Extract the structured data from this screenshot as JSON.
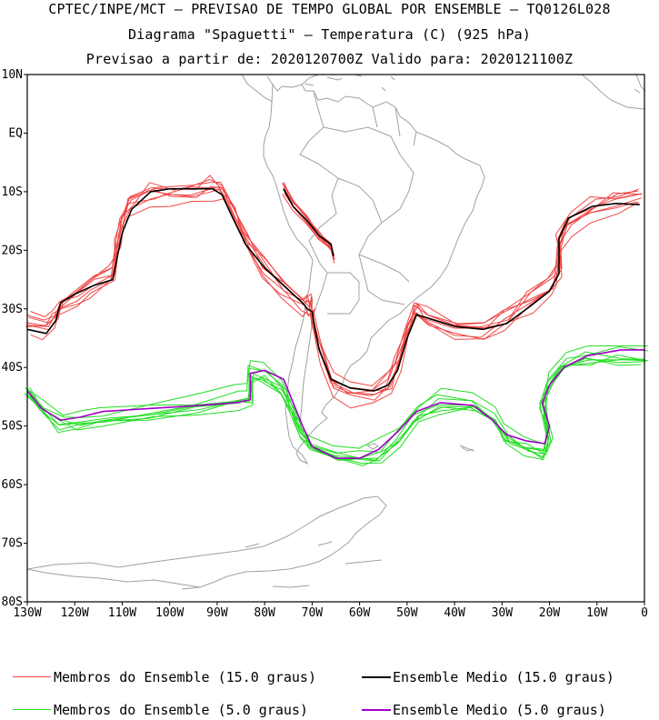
{
  "titles": {
    "line1": "CPTEC/INPE/MCT – PREVISAO DE TEMPO GLOBAL POR ENSEMBLE – TQ0126L028",
    "line2": "Diagrama \"Spaguetti\" – Temperatura (C) (925 hPa)",
    "line3": "Previsao a partir de: 2020120700Z  Valido para: 2020121100Z"
  },
  "legend": {
    "items": [
      {
        "label": "Membros do Ensemble (15.0 graus)",
        "color": "#f04646"
      },
      {
        "label": "Ensemble Medio (15.0 graus)",
        "color": "#000000"
      },
      {
        "label": "Membros do Ensemble (5.0 graus)",
        "color": "#22dd22"
      },
      {
        "label": "Ensemble Medio (5.0 graus)",
        "color": "#a000c8"
      }
    ]
  },
  "chart_data": {
    "type": "line",
    "title": "Diagrama \"Spaguetti\" – Temperatura (C) (925 hPa)",
    "xlabel": "",
    "ylabel": "",
    "xlim": [
      -130,
      0
    ],
    "ylim": [
      -80,
      10
    ],
    "x_ticks": [
      -130,
      -120,
      -110,
      -100,
      -90,
      -80,
      -70,
      -60,
      -50,
      -40,
      -30,
      -20,
      -10,
      0
    ],
    "x_tick_labels": [
      "130W",
      "120W",
      "110W",
      "100W",
      "90W",
      "80W",
      "70W",
      "60W",
      "50W",
      "40W",
      "30W",
      "20W",
      "10W",
      "0"
    ],
    "y_ticks": [
      10,
      0,
      -10,
      -20,
      -30,
      -40,
      -50,
      -60,
      -70,
      -80
    ],
    "y_tick_labels": [
      "10N",
      "EQ",
      "10S",
      "20S",
      "30S",
      "40S",
      "50S",
      "60S",
      "70S",
      "80S"
    ],
    "colors": {
      "members15": "#f04646",
      "mean15": "#000000",
      "members5": "#22dd22",
      "mean5": "#a000c8",
      "coast": "#a0a0a0"
    },
    "members_count": 8,
    "series": [
      {
        "name": "Ensemble Medio (15.0 graus)",
        "color": "#000000",
        "lines": [
          [
            [
              -130,
              -33.5
            ],
            [
              -126,
              -34.2
            ],
            [
              -124,
              -32
            ],
            [
              -123,
              -29
            ],
            [
              -120,
              -27.5
            ],
            [
              -116,
              -26
            ],
            [
              -112,
              -25
            ],
            [
              -111,
              -21
            ],
            [
              -110,
              -17
            ],
            [
              -108,
              -13
            ],
            [
              -104,
              -10
            ],
            [
              -100,
              -9.5
            ],
            [
              -95,
              -9.5
            ],
            [
              -91,
              -9.5
            ],
            [
              -89,
              -10.5
            ],
            [
              -87,
              -14
            ],
            [
              -84,
              -19
            ],
            [
              -80,
              -23
            ],
            [
              -76,
              -26
            ],
            [
              -72,
              -29
            ],
            [
              -71,
              -30
            ],
            [
              -70,
              -30.5
            ],
            [
              -69.5,
              -33
            ],
            [
              -68.5,
              -37
            ],
            [
              -66,
              -42
            ],
            [
              -62,
              -43.5
            ],
            [
              -57,
              -44
            ],
            [
              -54,
              -43
            ],
            [
              -52,
              -40.5
            ],
            [
              -50,
              -35
            ],
            [
              -48,
              -31
            ],
            [
              -46,
              -31.5
            ],
            [
              -40,
              -33
            ],
            [
              -34,
              -33.5
            ],
            [
              -29,
              -32.5
            ],
            [
              -24,
              -29.5
            ],
            [
              -20,
              -27
            ],
            [
              -18,
              -24
            ],
            [
              -18,
              -18
            ],
            [
              -16,
              -14.5
            ],
            [
              -11,
              -12.5
            ],
            [
              -6,
              -12
            ],
            [
              -1,
              -12.2
            ]
          ],
          [
            [
              -76,
              -9.5
            ],
            [
              -74,
              -12.5
            ],
            [
              -71,
              -15
            ],
            [
              -68.5,
              -17.5
            ],
            [
              -66,
              -19
            ],
            [
              -65.5,
              -21
            ]
          ]
        ]
      },
      {
        "name": "Ensemble Medio (5.0 graus)",
        "color": "#a000c8",
        "lines": [
          [
            [
              -130,
              -44
            ],
            [
              -127,
              -47
            ],
            [
              -123,
              -49
            ],
            [
              -119,
              -48.5
            ],
            [
              -114,
              -47.5
            ],
            [
              -104,
              -47
            ],
            [
              -94,
              -46.5
            ],
            [
              -86,
              -46
            ],
            [
              -83,
              -45.5
            ],
            [
              -83,
              -41
            ],
            [
              -80,
              -40.5
            ],
            [
              -76,
              -42
            ],
            [
              -74,
              -46
            ],
            [
              -72,
              -50
            ],
            [
              -70,
              -53.5
            ],
            [
              -65,
              -55.5
            ],
            [
              -60,
              -55.5
            ],
            [
              -56,
              -54
            ],
            [
              -52,
              -51
            ],
            [
              -48,
              -47.5
            ],
            [
              -43,
              -46
            ],
            [
              -36,
              -46.5
            ],
            [
              -32,
              -49
            ],
            [
              -29,
              -51.5
            ],
            [
              -25,
              -52.5
            ],
            [
              -21,
              -53
            ],
            [
              -20,
              -50
            ],
            [
              -21.5,
              -46
            ],
            [
              -20,
              -43
            ],
            [
              -17,
              -40
            ],
            [
              -12,
              -38
            ],
            [
              -5,
              -37
            ],
            [
              0,
              -37
            ]
          ]
        ]
      },
      {
        "name": "Membros do Ensemble (15.0 graus)",
        "color": "#f04646",
        "lines": "mean15 members, perturbed"
      },
      {
        "name": "Membros do Ensemble (5.0 graus)",
        "color": "#22dd22",
        "lines": "mean5 members, perturbed"
      }
    ]
  }
}
